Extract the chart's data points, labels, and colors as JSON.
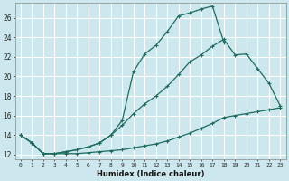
{
  "xlabel": "Humidex (Indice chaleur)",
  "background_color": "#cce8ee",
  "grid_color": "#ffffff",
  "line_color": "#1e6b5e",
  "xlim": [
    -0.5,
    23.5
  ],
  "ylim": [
    11.5,
    27.5
  ],
  "xticks": [
    0,
    1,
    2,
    3,
    4,
    5,
    6,
    7,
    8,
    9,
    10,
    11,
    12,
    13,
    14,
    15,
    16,
    17,
    18,
    19,
    20,
    21,
    22,
    23
  ],
  "yticks": [
    12,
    14,
    16,
    18,
    20,
    22,
    24,
    26
  ],
  "line1_x": [
    0,
    1,
    2,
    3,
    4,
    5,
    6,
    7,
    8,
    9,
    10,
    11,
    12,
    13,
    14,
    15,
    16,
    17,
    18
  ],
  "line1_y": [
    14.0,
    13.2,
    12.1,
    12.1,
    12.3,
    12.5,
    12.8,
    13.2,
    14.0,
    15.5,
    20.5,
    22.3,
    23.2,
    24.6,
    26.2,
    26.5,
    26.9,
    27.2,
    23.5
  ],
  "line2_x": [
    0,
    1,
    2,
    3,
    4,
    5,
    6,
    7,
    8,
    9,
    10,
    11,
    12,
    13,
    14,
    15,
    16,
    17,
    18,
    19,
    20,
    21,
    22,
    23
  ],
  "line2_y": [
    14.0,
    13.2,
    12.1,
    12.1,
    12.3,
    12.5,
    12.8,
    13.2,
    14.0,
    15.0,
    16.2,
    17.2,
    18.0,
    19.0,
    20.2,
    21.5,
    22.2,
    23.1,
    23.8,
    22.2,
    22.3,
    20.8,
    19.3,
    17.0
  ],
  "line3_x": [
    0,
    1,
    2,
    3,
    4,
    5,
    6,
    7,
    8,
    9,
    10,
    11,
    12,
    13,
    14,
    15,
    16,
    17,
    18,
    19,
    20,
    21,
    22,
    23
  ],
  "line3_y": [
    14.0,
    13.2,
    12.1,
    12.1,
    12.1,
    12.1,
    12.2,
    12.3,
    12.4,
    12.5,
    12.7,
    12.9,
    13.1,
    13.4,
    13.8,
    14.2,
    14.7,
    15.2,
    15.8,
    16.0,
    16.2,
    16.4,
    16.6,
    16.8
  ]
}
